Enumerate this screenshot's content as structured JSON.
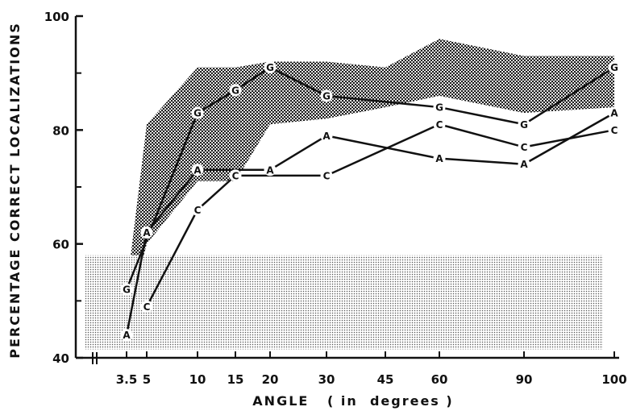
{
  "chart_data": {
    "type": "line",
    "ylabel": "PERCENTAGE CORRECT LOCALIZATIONS",
    "xlabel": "ANGLE   ( in  degrees )",
    "yticks": [
      40,
      60,
      80,
      100
    ],
    "ylim": [
      40,
      100
    ],
    "xticks": [
      "3.5",
      "5",
      "10",
      "15",
      "20",
      "30",
      "45",
      "60",
      "90",
      "100"
    ],
    "axis_break": "between 40 and first x tick",
    "grid": false,
    "legend": "none",
    "series": [
      {
        "marker": "G",
        "x": [
          "3.5",
          "10",
          "15",
          "20",
          "30",
          "60",
          "90",
          "100"
        ],
        "values": [
          52,
          83,
          87,
          91,
          86,
          84,
          81,
          91
        ]
      },
      {
        "marker": "A",
        "x": [
          "3.5",
          "5",
          "10",
          "20",
          "30",
          "60",
          "90",
          "100"
        ],
        "values": [
          44,
          62,
          73,
          73,
          79,
          75,
          74,
          83
        ]
      },
      {
        "marker": "C",
        "x": [
          "5",
          "10",
          "15",
          "30",
          "60",
          "90",
          "100"
        ],
        "values": [
          49,
          66,
          72,
          72,
          81,
          77,
          80
        ]
      }
    ],
    "bands": [
      {
        "name": "dark band (range)",
        "x": [
          "3.5",
          "5",
          "10",
          "15",
          "20",
          "30",
          "45",
          "60",
          "90",
          "100"
        ],
        "upper": [
          52,
          81,
          91,
          91,
          92,
          92,
          91,
          96,
          93,
          93
        ],
        "lower": [
          46,
          60,
          71,
          71,
          81,
          82,
          84,
          86,
          83,
          84
        ],
        "color": "#4a4a4a"
      },
      {
        "name": "light band (chance)",
        "x_start": "3.5-",
        "x_end": "100-",
        "upper": 58,
        "lower": 41.5,
        "color": "#b8b8b8"
      }
    ]
  }
}
